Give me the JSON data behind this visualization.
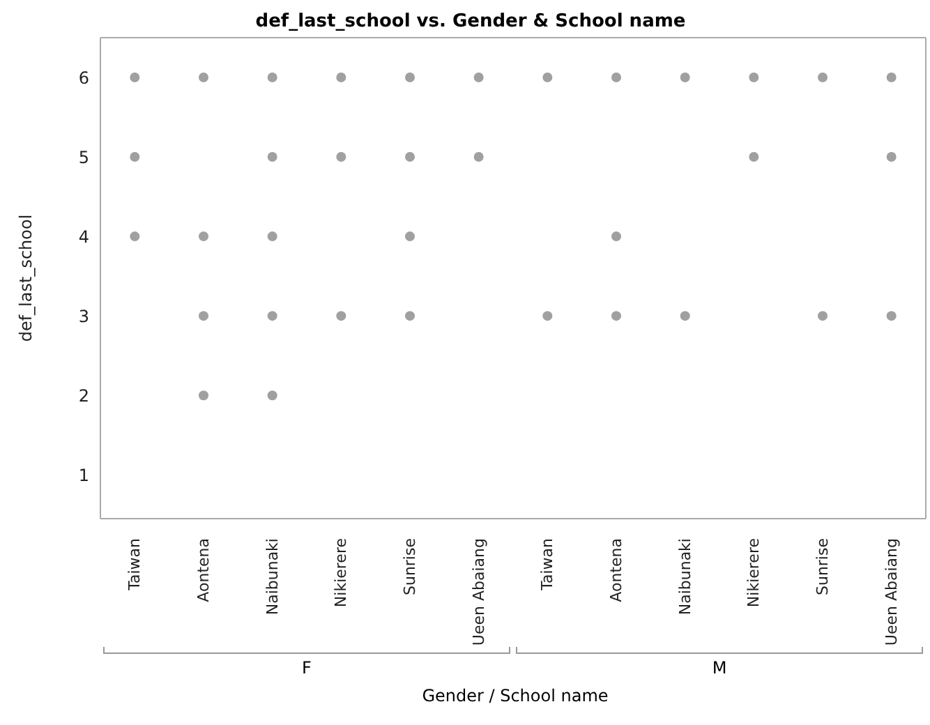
{
  "chart_data": [
    {
      "type": "scatter",
      "title": "def_last_school vs. Gender & School name",
      "xlabel": "F",
      "ylabel": "def_last_school",
      "categories": [
        "Taiwan",
        "Aontena",
        "Naibunaki",
        "Nikierere",
        "Sunrise",
        "Ueen Abaiang"
      ],
      "series": [
        {
          "color": "#a0a0a0",
          "x": [
            "Taiwan",
            "Taiwan",
            "Taiwan",
            "Aontena",
            "Aontena",
            "Aontena",
            "Aontena",
            "Naibunaki",
            "Naibunaki",
            "Naibunaki",
            "Naibunaki",
            "Naibunaki",
            "Nikierere",
            "Nikierere",
            "Nikierere",
            "Sunrise",
            "Sunrise",
            "Sunrise",
            "Sunrise",
            "Ueen Abaiang",
            "Ueen Abaiang"
          ],
          "values": [
            6,
            5,
            4,
            6,
            4,
            3,
            2,
            6,
            5,
            4,
            3,
            2,
            6,
            5,
            3,
            6,
            5,
            4,
            3,
            6,
            5
          ]
        }
      ],
      "marker": "circle",
      "ylim": [
        0.45,
        6.5
      ],
      "yticks": [
        1,
        2,
        3,
        4,
        5,
        6
      ]
    },
    {
      "type": "scatter",
      "xlabel": "M",
      "categories": [
        "Taiwan",
        "Aontena",
        "Naibunaki",
        "Nikierere",
        "Sunrise",
        "Ueen Abaiang"
      ],
      "series": [
        {
          "color": "#a0a0a0",
          "x": [
            "Taiwan",
            "Taiwan",
            "Aontena",
            "Aontena",
            "Aontena",
            "Naibunaki",
            "Naibunaki",
            "Nikierere",
            "Nikierere",
            "Sunrise",
            "Sunrise",
            "Ueen Abaiang",
            "Ueen Abaiang",
            "Ueen Abaiang"
          ],
          "values": [
            6,
            3,
            6,
            4,
            3,
            6,
            3,
            6,
            5,
            6,
            3,
            6,
            5,
            3
          ]
        }
      ],
      "marker": "circle",
      "ylim": [
        0.45,
        6.5
      ],
      "yticks": [
        1,
        2,
        3,
        4,
        5,
        6
      ],
      "tick_labels": "x",
      "annotations": [
        "Gender / School name"
      ]
    }
  ]
}
